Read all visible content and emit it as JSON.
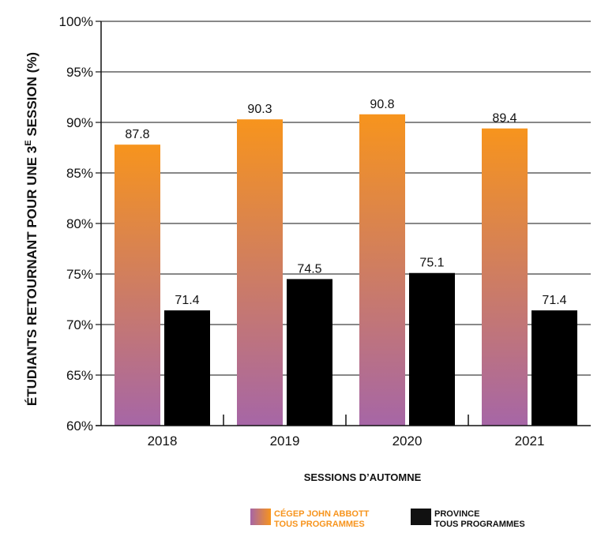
{
  "chart_data": {
    "type": "bar",
    "categories": [
      "2018",
      "2019",
      "2020",
      "2021"
    ],
    "series": [
      {
        "name": "CÉGEP JOHN ABBOTT TOUS PROGRAMMES",
        "legend_lines": [
          "CÉGEP JOHN ABBOTT",
          "TOUS PROGRAMMES"
        ],
        "values": [
          87.8,
          90.3,
          90.8,
          89.4
        ],
        "gradient": [
          "#F7941D",
          "#A666A6"
        ],
        "legend_color": "#F7941D"
      },
      {
        "name": "PROVINCE TOUS PROGRAMMES",
        "legend_lines": [
          "PROVINCE",
          "TOUS PROGRAMMES"
        ],
        "values": [
          71.4,
          74.5,
          75.1,
          71.4
        ],
        "color": "#000000",
        "legend_color": "#111111"
      }
    ],
    "data_labels": [
      [
        "87.8",
        "90.3",
        "90.8",
        "89.4"
      ],
      [
        "71.4",
        "74.5",
        "75.1",
        "71.4"
      ]
    ],
    "ylabel_main": "ÉTUDIANTS RETOURNANT POUR UNE 3",
    "ylabel_sup": "E",
    "ylabel_end": " SESSION (%)",
    "xlabel": "SESSIONS D’AUTOMNE",
    "ylim": [
      60,
      100
    ],
    "yticks": [
      60,
      65,
      70,
      75,
      80,
      85,
      90,
      95,
      100
    ],
    "ytick_labels": [
      "60%",
      "65%",
      "70%",
      "75%",
      "80%",
      "85%",
      "90%",
      "95%",
      "100%"
    ],
    "grid": true,
    "legend_position": "bottom"
  }
}
